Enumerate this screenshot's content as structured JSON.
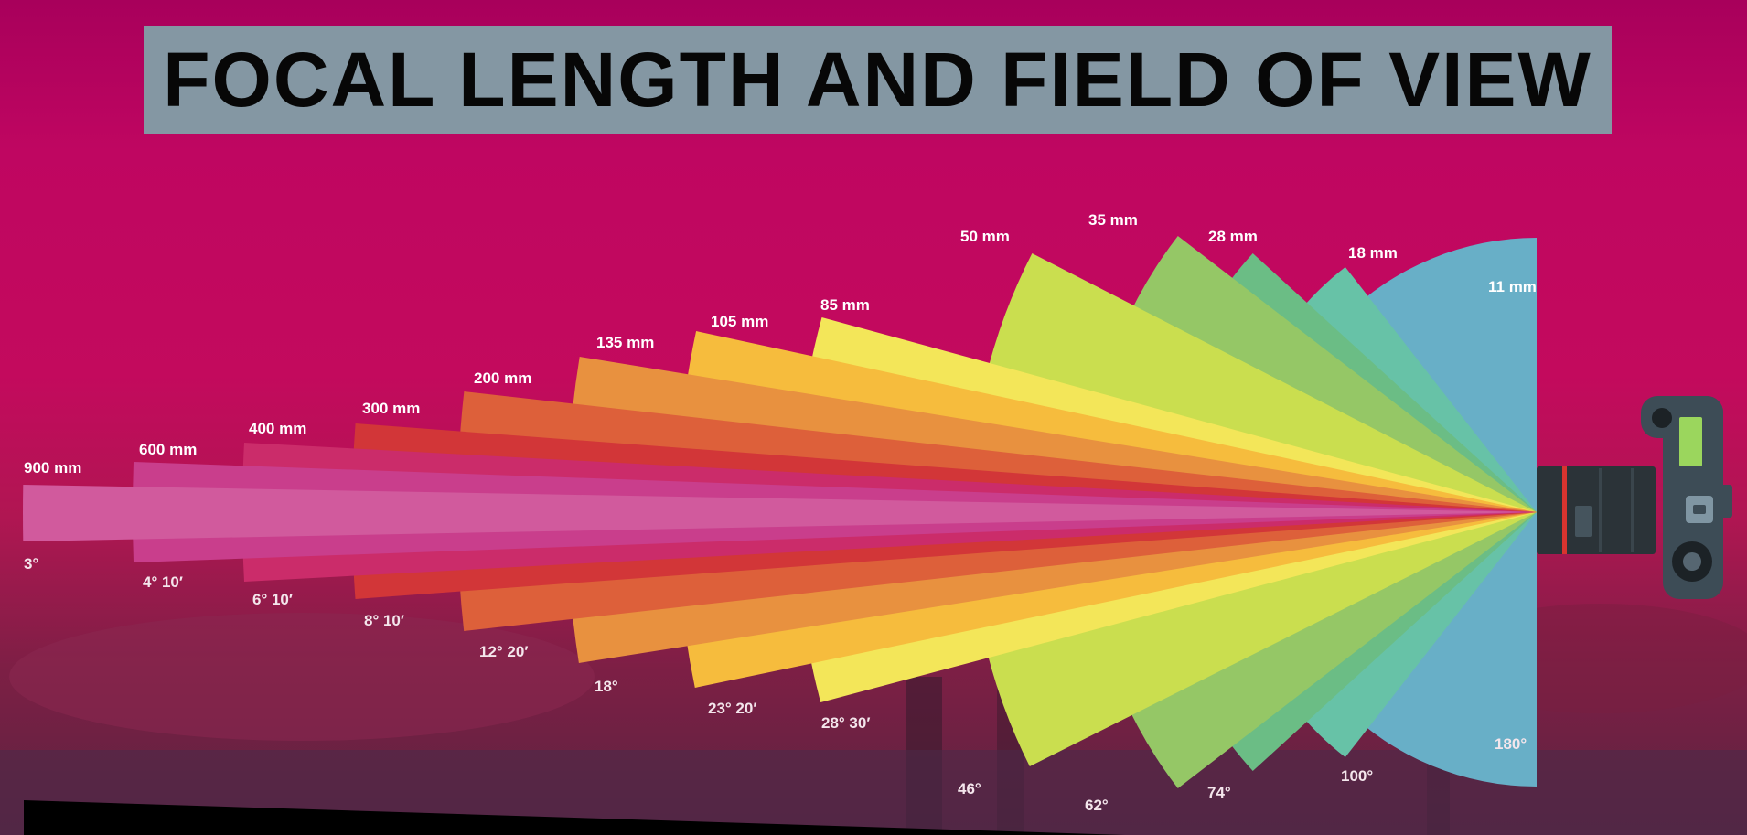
{
  "title": "FOCAL LENGTH AND FIELD OF VIEW",
  "diagram": {
    "lenses": [
      {
        "focal": "900 mm",
        "angle": "3°",
        "color": "#d15a9d"
      },
      {
        "focal": "600 mm",
        "angle": "4° 10′",
        "color": "#c93e8c"
      },
      {
        "focal": "400 mm",
        "angle": "6° 10′",
        "color": "#cb2c6a"
      },
      {
        "focal": "300 mm",
        "angle": "8° 10′",
        "color": "#d23638"
      },
      {
        "focal": "200 mm",
        "angle": "12° 20′",
        "color": "#dd603a"
      },
      {
        "focal": "135 mm",
        "angle": "18°",
        "color": "#e8913f"
      },
      {
        "focal": "105 mm",
        "angle": "23° 20′",
        "color": "#f6bc3d"
      },
      {
        "focal": "85 mm",
        "angle": "28° 30′",
        "color": "#f3e659"
      },
      {
        "focal": "50 mm",
        "angle": "46°",
        "color": "#cade4f"
      },
      {
        "focal": "35 mm",
        "angle": "62°",
        "color": "#95c766"
      },
      {
        "focal": "28 mm",
        "angle": "74°",
        "color": "#6bbd85"
      },
      {
        "focal": "18 mm",
        "angle": "100°",
        "color": "#67c2a7"
      },
      {
        "focal": "11 mm",
        "angle": "180°",
        "color": "#68afc7"
      }
    ]
  },
  "camera": {
    "body_color": "#3d4c56",
    "lens_color": "#2b3338",
    "stripe_color": "#d8342f",
    "screen_color": "#9bd65d"
  }
}
